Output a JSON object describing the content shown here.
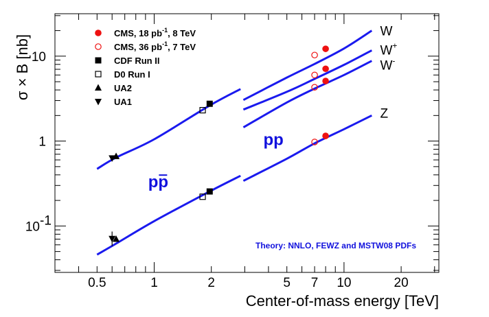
{
  "chart_data": {
    "type": "scatter",
    "xlabel": "Center-of-mass energy [TeV]",
    "ylabel": "σ × B [nb]",
    "xscale": "log",
    "yscale": "log",
    "xlim": [
      0.3,
      31.6
    ],
    "ylim": [
      0.0284,
      31.6
    ],
    "x_ticks": [
      {
        "value": 0.5,
        "label": "0.5"
      },
      {
        "value": 1,
        "label": "1"
      },
      {
        "value": 2,
        "label": "2"
      },
      {
        "value": 5,
        "label": "5"
      },
      {
        "value": 7,
        "label": "7"
      },
      {
        "value": 10,
        "label": "10"
      },
      {
        "value": 20,
        "label": "20"
      }
    ],
    "y_ticks": [
      {
        "value": 0.1,
        "label": "10",
        "exponent": "-1"
      },
      {
        "value": 1,
        "label": "1",
        "exponent": ""
      },
      {
        "value": 10,
        "label": "10",
        "exponent": ""
      }
    ],
    "legend": [
      {
        "key": "cms8",
        "label": "CMS, 18 pb",
        "sup": "-1",
        "suffix": ", 8 TeV",
        "marker": "circle-filled",
        "color": "#ee1111"
      },
      {
        "key": "cms7",
        "label": "CMS, 36 pb",
        "sup": "-1",
        "suffix": ", 7 TeV",
        "marker": "circle-open",
        "color": "#ee1111"
      },
      {
        "key": "cdf",
        "label": "CDF Run II",
        "sup": "",
        "suffix": "",
        "marker": "square-filled",
        "color": "#000000"
      },
      {
        "key": "d0",
        "label": "D0 Run I",
        "sup": "",
        "suffix": "",
        "marker": "square-open",
        "color": "#000000"
      },
      {
        "key": "ua2",
        "label": "UA2",
        "sup": "",
        "suffix": "",
        "marker": "triangle-up",
        "color": "#000000"
      },
      {
        "key": "ua1",
        "label": "UA1",
        "sup": "",
        "suffix": "",
        "marker": "triangle-down",
        "color": "#000000"
      }
    ],
    "theory_curves": [
      {
        "name": "W (p p̄)",
        "points": [
          [
            0.5,
            0.47
          ],
          [
            0.63,
            0.64
          ],
          [
            1.0,
            1.05
          ],
          [
            1.96,
            2.62
          ],
          [
            2.85,
            4.1
          ]
        ]
      },
      {
        "name": "W (pp)",
        "points": [
          [
            2.95,
            3.05
          ],
          [
            5.0,
            5.6
          ],
          [
            7.0,
            8.1
          ],
          [
            10.0,
            12.3
          ],
          [
            14.0,
            20.0
          ]
        ]
      },
      {
        "name": "W+ (pp)",
        "points": [
          [
            2.95,
            2.35
          ],
          [
            5.0,
            3.8
          ],
          [
            7.0,
            5.4
          ],
          [
            10.0,
            7.9
          ],
          [
            14.0,
            11.7
          ]
        ]
      },
      {
        "name": "W- (pp)",
        "points": [
          [
            2.95,
            1.45
          ],
          [
            5.0,
            2.85
          ],
          [
            7.0,
            4.15
          ],
          [
            10.0,
            6.0
          ],
          [
            14.0,
            8.8
          ]
        ]
      },
      {
        "name": "Z (p p̄)",
        "points": [
          [
            0.5,
            0.046
          ],
          [
            0.63,
            0.062
          ],
          [
            1.0,
            0.114
          ],
          [
            1.96,
            0.255
          ],
          [
            2.85,
            0.39
          ]
        ]
      },
      {
        "name": "Z (pp)",
        "points": [
          [
            2.95,
            0.34
          ],
          [
            5.0,
            0.62
          ],
          [
            7.0,
            0.94
          ],
          [
            10.0,
            1.38
          ],
          [
            14.0,
            2.0
          ]
        ]
      }
    ],
    "series": [
      {
        "name": "CMS, 18 pb-1, 8 TeV",
        "key": "cms8",
        "points": [
          [
            8,
            12.2
          ],
          [
            8,
            7.1
          ],
          [
            8,
            5.1
          ],
          [
            8,
            1.15
          ]
        ]
      },
      {
        "name": "CMS, 36 pb-1, 7 TeV",
        "key": "cms7",
        "points": [
          [
            7,
            10.3
          ],
          [
            7,
            6.0
          ],
          [
            7,
            4.3
          ],
          [
            7,
            0.975
          ]
        ]
      },
      {
        "name": "CDF Run II",
        "key": "cdf",
        "points": [
          [
            1.96,
            2.75
          ],
          [
            1.96,
            0.255
          ]
        ]
      },
      {
        "name": "D0 Run I",
        "key": "d0",
        "points": [
          [
            1.8,
            2.31
          ],
          [
            1.8,
            0.221
          ]
        ]
      },
      {
        "name": "UA2",
        "key": "ua2",
        "points": [
          [
            0.63,
            0.66
          ],
          [
            0.63,
            0.07
          ]
        ]
      },
      {
        "name": "UA1",
        "key": "ua1",
        "points": [
          [
            0.6,
            0.63
          ],
          [
            0.6,
            0.071
          ]
        ]
      }
    ],
    "error_bars": [
      {
        "key": "ua1",
        "x": 0.6,
        "y_low": 0.058,
        "y_high": 0.086
      }
    ],
    "series_labels": [
      {
        "base": "W",
        "sup": "",
        "x": 15.5,
        "y": 20.0
      },
      {
        "base": "W",
        "sup": "+",
        "x": 15.5,
        "y": 11.9
      },
      {
        "base": "W",
        "sup": "-",
        "x": 15.5,
        "y": 7.9
      },
      {
        "base": "Z",
        "sup": "",
        "x": 15.5,
        "y": 2.14
      }
    ],
    "collision_labels": [
      {
        "text": "pp",
        "overline": false,
        "x": 4.25,
        "y": 1.04,
        "color": "#1111dd"
      },
      {
        "text": "pp",
        "overline": true,
        "x": 1.05,
        "y": 0.33,
        "color": "#1111dd"
      }
    ],
    "theory_note": {
      "text": "Theory: NNLO, FEWZ and MSTW08 PDFs",
      "color": "#1111dd"
    },
    "colors": {
      "curve": "#1a1aee",
      "cms": "#ee1111",
      "frame": "#000000"
    }
  }
}
